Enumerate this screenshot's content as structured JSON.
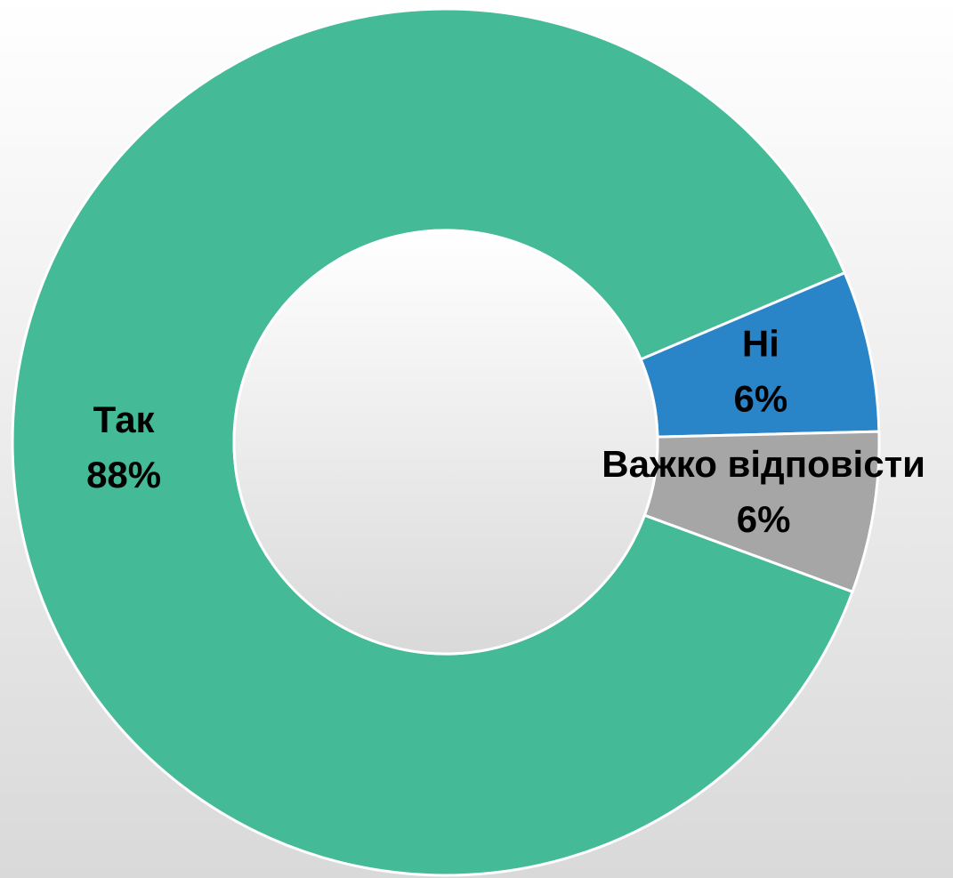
{
  "chart_data": {
    "type": "donut",
    "categories": [
      "Так",
      "Ні",
      "Важко відповісти"
    ],
    "values": [
      88,
      6,
      6
    ],
    "value_labels": [
      "88%",
      "6%",
      "6%"
    ],
    "colors": [
      "#44ba97",
      "#2a84c8",
      "#a6a6a6"
    ]
  }
}
